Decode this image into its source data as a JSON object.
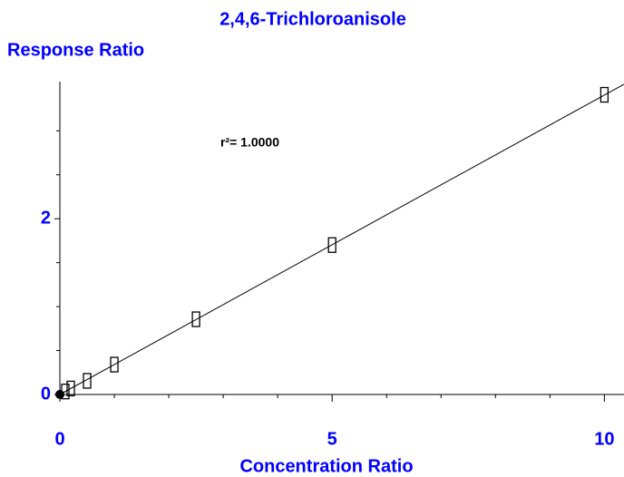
{
  "chart_data": {
    "type": "scatter",
    "title": "2,4,6-Trichloroanisole",
    "y_label": "Response Ratio",
    "x_label": "Concentration Ratio",
    "annotation": "r²= 1.0000",
    "x": [
      0,
      0.1,
      0.2,
      0.5,
      1,
      2.5,
      5,
      10
    ],
    "values": [
      0,
      0.034,
      0.068,
      0.155,
      0.34,
      0.856,
      1.7,
      3.41
    ],
    "fit_line": {
      "x": [
        0,
        10.36
      ],
      "values": [
        0,
        3.53
      ]
    },
    "xlim": [
      0,
      10.36
    ],
    "ylim": [
      0,
      3.56
    ],
    "xticks": [
      0,
      5,
      10
    ],
    "yticks": [
      0,
      2
    ],
    "x_minor_ticks": [
      1,
      2,
      3,
      4,
      6,
      7,
      8,
      9
    ],
    "y_minor_ticks": [
      0.5,
      1,
      1.5,
      2.5,
      3
    ],
    "color": "#000000",
    "label_color": "#0000ff"
  }
}
